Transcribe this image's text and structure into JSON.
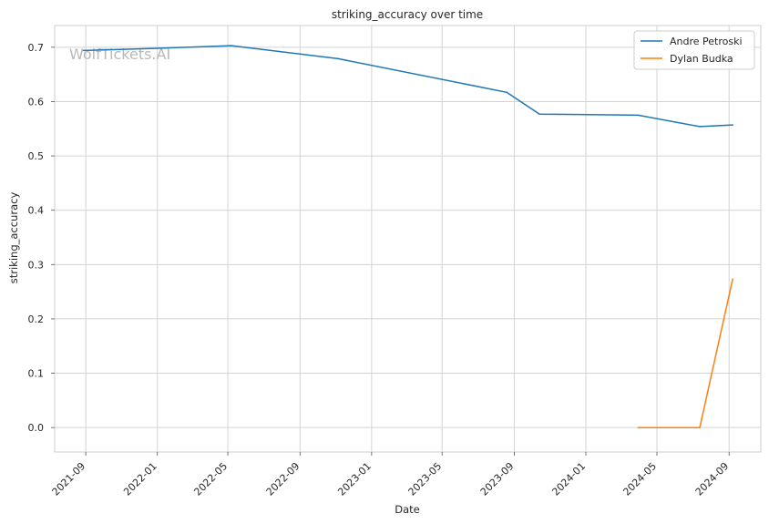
{
  "chart_data": {
    "type": "line",
    "title": "striking_accuracy over time",
    "xlabel": "Date",
    "ylabel": "striking_accuracy",
    "watermark": "WolfTickets.AI",
    "x_ticks": [
      "2021-09",
      "2022-01",
      "2022-05",
      "2022-09",
      "2023-01",
      "2023-05",
      "2023-09",
      "2024-01",
      "2024-05",
      "2024-09"
    ],
    "y_ticks": [
      "0.0",
      "0.1",
      "0.2",
      "0.3",
      "0.4",
      "0.5",
      "0.6",
      "0.7"
    ],
    "xlim": [
      "2021-07-10",
      "2024-10-25"
    ],
    "ylim": [
      -0.045,
      0.74
    ],
    "grid": true,
    "legend_position": "top-right",
    "series": [
      {
        "name": "Andre Petroski",
        "color": "#1f77b4",
        "points": [
          {
            "x": "2021-08-28",
            "y": 0.694
          },
          {
            "x": "2022-01-01",
            "y": 0.698
          },
          {
            "x": "2022-05-07",
            "y": 0.703
          },
          {
            "x": "2022-11-05",
            "y": 0.679
          },
          {
            "x": "2023-08-19",
            "y": 0.617
          },
          {
            "x": "2023-10-14",
            "y": 0.577
          },
          {
            "x": "2024-03-30",
            "y": 0.575
          },
          {
            "x": "2024-07-13",
            "y": 0.554
          },
          {
            "x": "2024-09-07",
            "y": 0.557
          }
        ]
      },
      {
        "name": "Dylan Budka",
        "color": "#ff7f0e",
        "points": [
          {
            "x": "2024-03-30",
            "y": 0.0
          },
          {
            "x": "2024-07-13",
            "y": 0.0
          },
          {
            "x": "2024-09-07",
            "y": 0.273
          }
        ]
      }
    ]
  }
}
